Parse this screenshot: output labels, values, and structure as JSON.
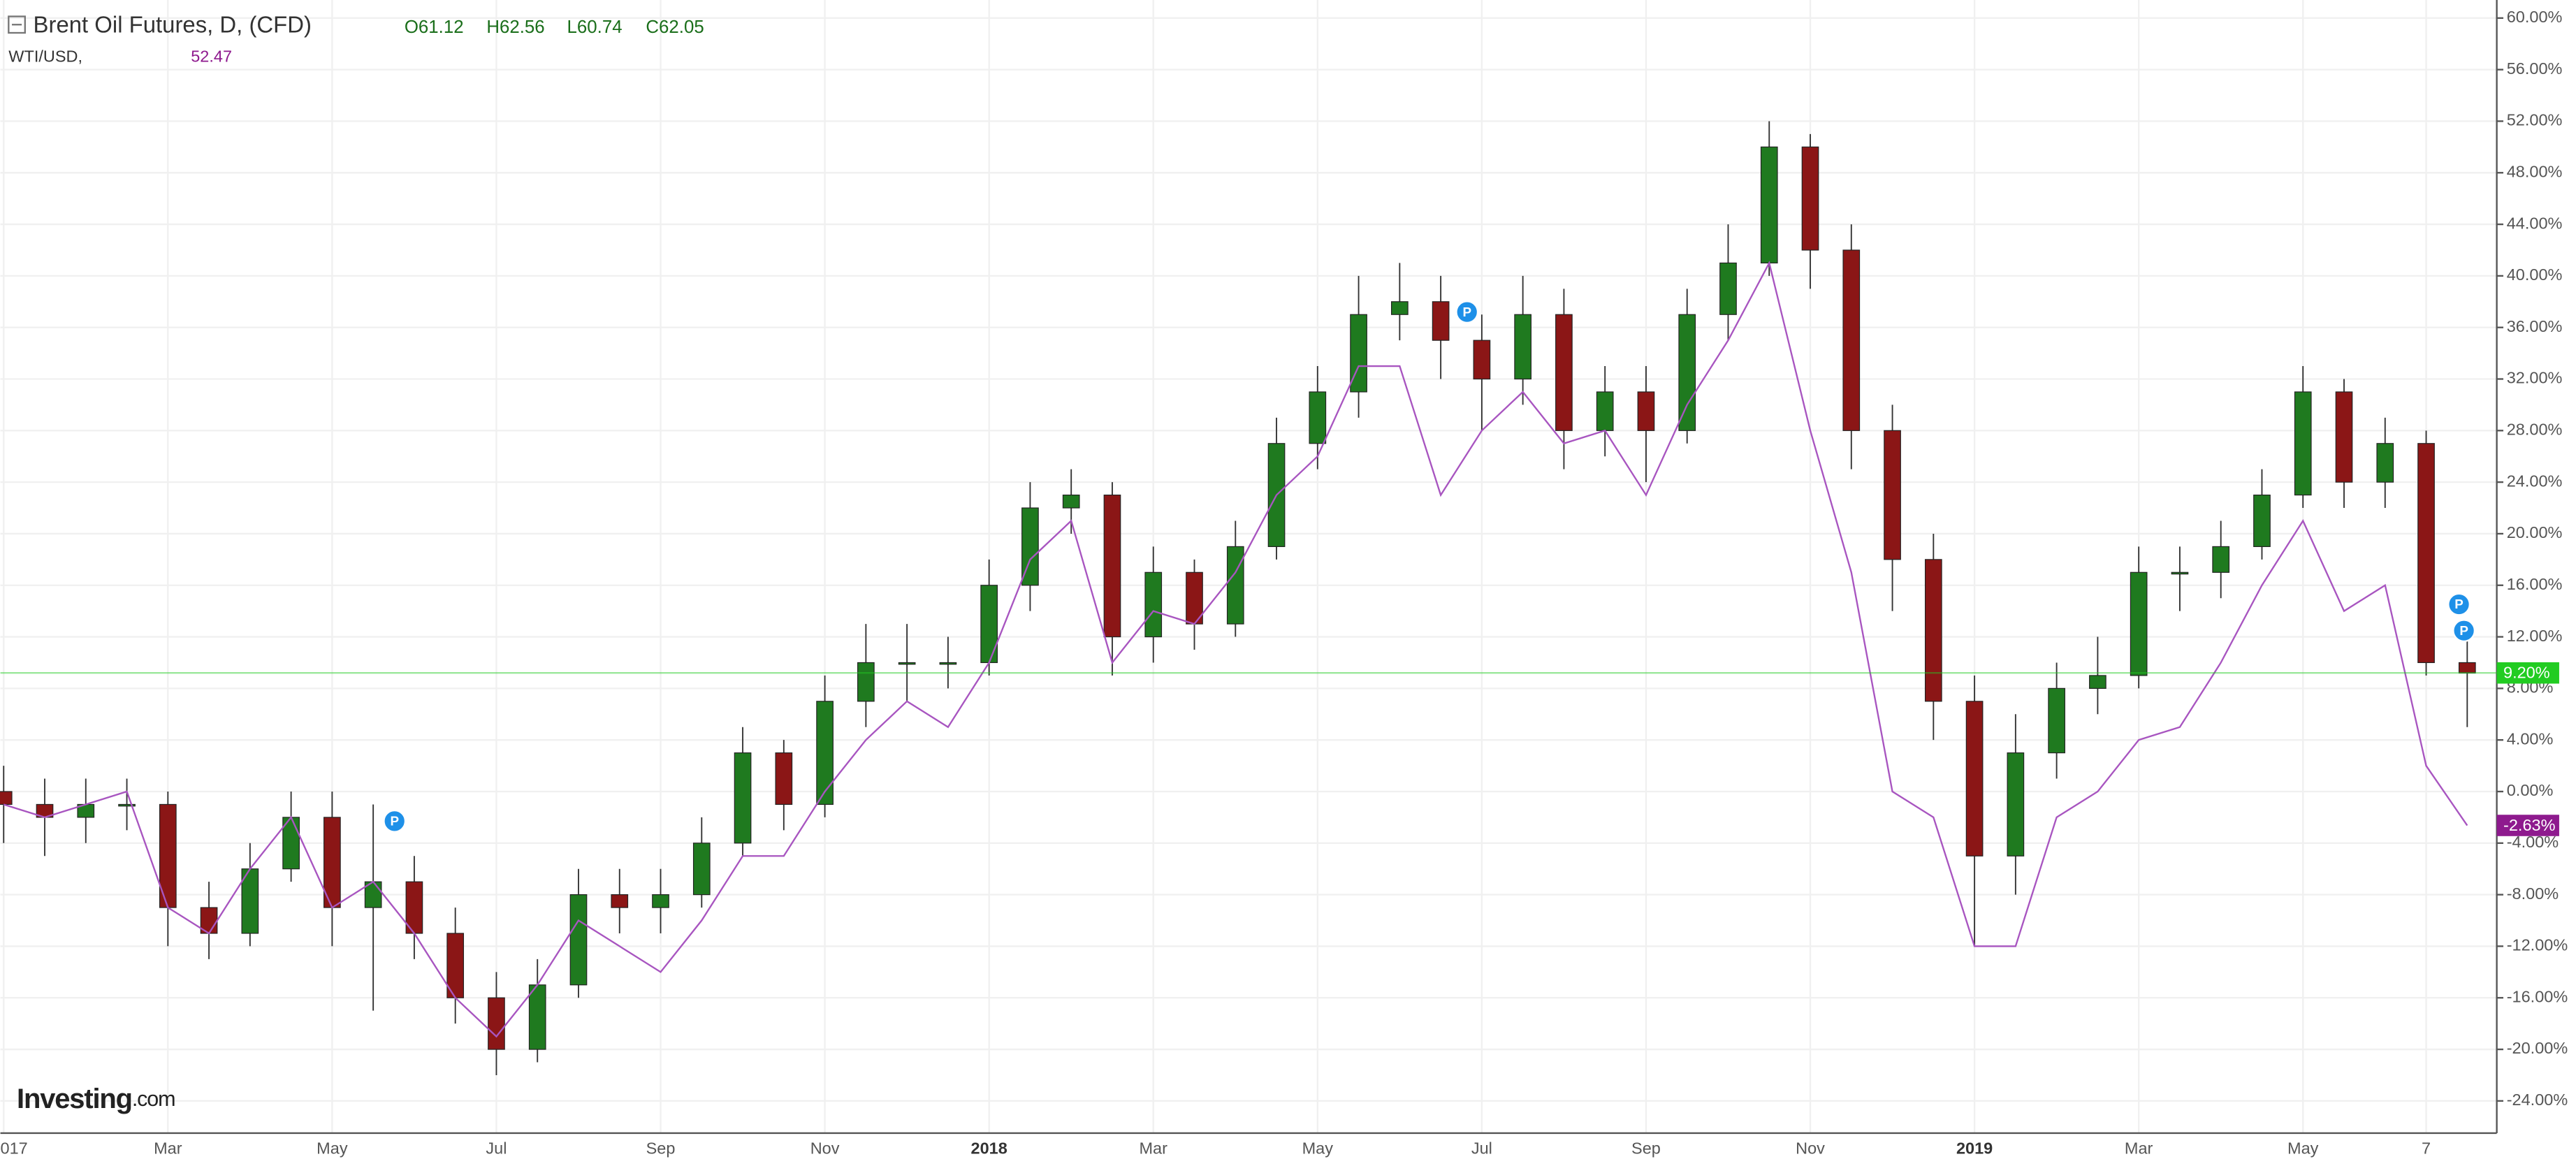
{
  "chart_data": {
    "type": "candlestick",
    "header": {
      "title": "Brent Oil Futures, D, (CFD)",
      "ohlc": [
        "O61.12",
        "H62.56",
        "L60.74",
        "C62.05"
      ],
      "second_name": "WTI/USD,",
      "second_value": "52.47"
    },
    "logo": [
      "Investing",
      ".com"
    ],
    "categories": [
      "017",
      null,
      null,
      null,
      "Mar",
      null,
      null,
      null,
      "May",
      null,
      null,
      null,
      "Jul",
      null,
      null,
      null,
      "Sep",
      null,
      null,
      null,
      "Nov",
      null,
      null,
      null,
      "2018",
      null,
      null,
      null,
      "Mar",
      null,
      null,
      null,
      "May",
      null,
      null,
      null,
      "Jul",
      null,
      null,
      null,
      "Sep",
      null,
      null,
      null,
      "Nov",
      null,
      null,
      null,
      "2019",
      null,
      null,
      null,
      "Mar",
      null,
      null,
      null,
      "May",
      null,
      null,
      "7",
      null
    ],
    "series": [
      {
        "name": "Brent Oil Futures",
        "up_color": "#1f7a1f",
        "down_color": "#8b1616",
        "open": [
          0,
          -1,
          -2,
          -1,
          -1,
          -9,
          -11,
          -6,
          -2,
          -9,
          -7,
          -11,
          -16,
          -20,
          -15,
          -8,
          -9,
          -8,
          -4,
          3,
          -1,
          7,
          10,
          10,
          10,
          16,
          22,
          23,
          12,
          17,
          13,
          19,
          27,
          31,
          37,
          38,
          35,
          32,
          37,
          28,
          31,
          28,
          37,
          41,
          50,
          42,
          28,
          18,
          7,
          -5,
          3,
          8,
          9,
          17,
          17,
          19,
          23,
          31,
          24,
          27,
          10
        ],
        "high": [
          2,
          1,
          1,
          1,
          0,
          -7,
          -4,
          0,
          0,
          -1,
          -5,
          -9,
          -14,
          -13,
          -6,
          -6,
          -6,
          -2,
          5,
          4,
          9,
          13,
          13,
          12,
          18,
          24,
          25,
          24,
          19,
          18,
          21,
          29,
          33,
          40,
          41,
          40,
          37,
          40,
          39,
          33,
          33,
          39,
          44,
          52,
          51,
          44,
          30,
          20,
          9,
          6,
          10,
          12,
          19,
          19,
          21,
          25,
          33,
          32,
          29,
          28,
          12
        ],
        "low": [
          -4,
          -5,
          -4,
          -3,
          -12,
          -13,
          -12,
          -7,
          -12,
          -17,
          -13,
          -18,
          -22,
          -21,
          -16,
          -11,
          -11,
          -9,
          -5,
          -3,
          -2,
          5,
          7,
          8,
          9,
          14,
          20,
          9,
          10,
          11,
          12,
          18,
          25,
          29,
          35,
          32,
          28,
          30,
          25,
          26,
          24,
          27,
          35,
          40,
          39,
          25,
          14,
          4,
          -12,
          -8,
          1,
          6,
          8,
          14,
          15,
          18,
          22,
          22,
          22,
          9,
          5
        ],
        "close": [
          -1,
          -2,
          -1,
          -1,
          -9,
          -11,
          -6,
          -2,
          -9,
          -7,
          -11,
          -16,
          -20,
          -15,
          -8,
          -9,
          -8,
          -4,
          3,
          -1,
          7,
          10,
          10,
          10,
          16,
          22,
          23,
          12,
          17,
          13,
          19,
          27,
          31,
          37,
          38,
          35,
          32,
          37,
          28,
          31,
          28,
          37,
          41,
          50,
          42,
          28,
          18,
          7,
          -5,
          3,
          8,
          9,
          17,
          17,
          19,
          23,
          31,
          24,
          27,
          10,
          9.2
        ],
        "last": {
          "value": 9.2,
          "label": "9.20%"
        },
        "last_color": "#22cc22"
      },
      {
        "name": "WTI/USD",
        "type": "line",
        "color": "#a855c0",
        "values": [
          -1,
          -2,
          -1,
          0,
          -9,
          -11,
          -6,
          -2,
          -9,
          -7,
          -11,
          -16,
          -19,
          -15,
          -10,
          -12,
          -14,
          -10,
          -5,
          -5,
          0,
          4,
          7,
          5,
          10,
          18,
          21,
          10,
          14,
          13,
          17,
          23,
          26,
          33,
          33,
          23,
          28,
          31,
          27,
          28,
          23,
          30,
          35,
          41,
          28,
          17,
          0,
          -2,
          -12,
          -12,
          -2,
          0,
          4,
          5,
          10,
          16,
          21,
          14,
          16,
          2,
          -2.63
        ],
        "last": {
          "value": -2.63,
          "label": "-2.63%"
        },
        "last_color": "#8e1a8e"
      }
    ],
    "ylim": [
      -26.5,
      61.4
    ],
    "yticks": [
      {
        "value": -24,
        "label": "-24.00%"
      },
      {
        "value": -20,
        "label": "-20.00%"
      },
      {
        "value": -16,
        "label": "-16.00%"
      },
      {
        "value": -12,
        "label": "-12.00%"
      },
      {
        "value": -8,
        "label": "-8.00%"
      },
      {
        "value": -4,
        "label": "-4.00%"
      },
      {
        "value": 0,
        "label": "0.00%"
      },
      {
        "value": 4,
        "label": "4.00%"
      },
      {
        "value": 8,
        "label": "8.00%"
      },
      {
        "value": 12,
        "label": "12.00%"
      },
      {
        "value": 16,
        "label": "16.00%"
      },
      {
        "value": 20,
        "label": "20.00%"
      },
      {
        "value": 24,
        "label": "24.00%"
      },
      {
        "value": 28,
        "label": "28.00%"
      },
      {
        "value": 32,
        "label": "32.00%"
      },
      {
        "value": 36,
        "label": "36.00%"
      },
      {
        "value": 40,
        "label": "40.00%"
      },
      {
        "value": 44,
        "label": "44.00%"
      },
      {
        "value": 48,
        "label": "48.00%"
      },
      {
        "value": 52,
        "label": "52.00%"
      },
      {
        "value": 56,
        "label": "56.00%"
      },
      {
        "value": 60,
        "label": "60.00%"
      }
    ],
    "grid": true,
    "markers": [
      "P",
      "P",
      "P",
      "P"
    ]
  }
}
